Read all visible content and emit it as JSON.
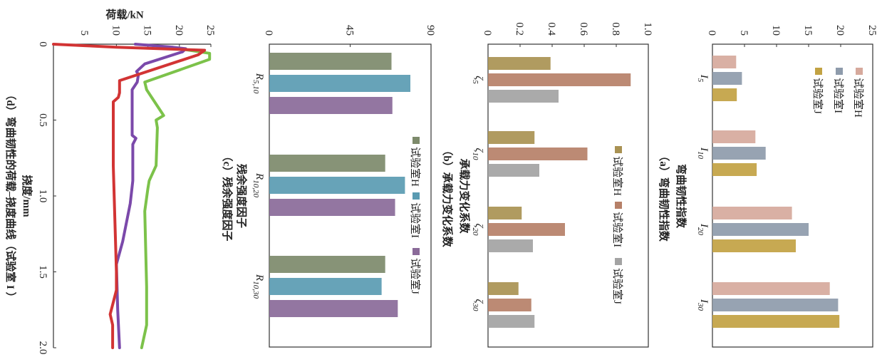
{
  "chart_data": [
    {
      "type": "bar",
      "title": "（a）弯曲韧性指数",
      "title_duplicate": "弯曲韧性指数",
      "categories": [
        "I5",
        "I10",
        "I20",
        "I30"
      ],
      "category_labels": [
        {
          "base": "I",
          "sub": "5"
        },
        {
          "base": "I",
          "sub": "10"
        },
        {
          "base": "I",
          "sub": "20"
        },
        {
          "base": "I",
          "sub": "30"
        }
      ],
      "series": [
        {
          "name": "试验室H",
          "color": "#d6a99c",
          "values": [
            3.7,
            6.7,
            12.4,
            18.3
          ]
        },
        {
          "name": "试验室I",
          "color": "#8e9bab",
          "values": [
            4.6,
            8.3,
            15.0,
            19.6
          ]
        },
        {
          "name": "试验室J",
          "color": "#c2a243",
          "values": [
            3.8,
            6.9,
            13.0,
            19.8
          ]
        }
      ],
      "ylim": [
        0,
        25
      ],
      "yticks": [
        "0",
        "5",
        "10",
        "15",
        "20",
        "25"
      ],
      "legend": "top-left, vertical"
    },
    {
      "type": "bar",
      "title": "（b）承载力变化系数",
      "title_duplicate": "承载力变化系数",
      "categories": [
        "ζ5",
        "ζ10",
        "ζ20",
        "ζ30"
      ],
      "category_labels": [
        {
          "base": "ζ",
          "sub": "5"
        },
        {
          "base": "ζ",
          "sub": "10"
        },
        {
          "base": "ζ",
          "sub": "20"
        },
        {
          "base": "ζ",
          "sub": "30"
        }
      ],
      "series": [
        {
          "name": "试验室H",
          "color": "#a99253",
          "values": [
            0.39,
            0.29,
            0.21,
            0.19
          ]
        },
        {
          "name": "试验室I",
          "color": "#b68068",
          "values": [
            0.89,
            0.62,
            0.48,
            0.27
          ]
        },
        {
          "name": "试验室J",
          "color": "#a3a3a3",
          "values": [
            0.44,
            0.32,
            0.28,
            0.29
          ]
        }
      ],
      "ylim": [
        0,
        1.0
      ],
      "yticks": [
        "0",
        "0.2",
        "0.4",
        "0.6",
        "0.8",
        "1.0"
      ],
      "legend": "top, horizontal"
    },
    {
      "type": "bar",
      "title": "（c）残余强度因子",
      "title_duplicate": "残余强度因子",
      "categories": [
        "R5,10",
        "R10,20",
        "R10,30"
      ],
      "category_labels": [
        {
          "base": "R",
          "sub": "5,10"
        },
        {
          "base": "R",
          "sub": "10,20"
        },
        {
          "base": "R",
          "sub": "10,30"
        }
      ],
      "series": [
        {
          "name": "试验室H",
          "color": "#7d8a6b",
          "values": [
            68,
            64.5,
            64.5
          ]
        },
        {
          "name": "试验室I",
          "color": "#5a9bb2",
          "values": [
            78.5,
            75.5,
            62.5
          ]
        },
        {
          "name": "试验室J",
          "color": "#8a6a99",
          "values": [
            68.5,
            70,
            71.5
          ]
        }
      ],
      "ylim": [
        0,
        90
      ],
      "yticks": [
        "0",
        "45",
        "90"
      ],
      "legend": "top, horizontal"
    },
    {
      "type": "line",
      "title": "（d）弯曲韧性的荷载–挠度曲线（试验室 I ）",
      "xlabel": "挠度/mm",
      "ylabel": "荷载/kN",
      "xlim": [
        0,
        2.0
      ],
      "ylim": [
        0,
        25
      ],
      "xticks": [
        "0",
        "0.5",
        "1.0",
        "1.5",
        "2.0"
      ],
      "yticks": [
        "5",
        "10",
        "15",
        "20",
        "25"
      ],
      "series": [
        {
          "name": "green",
          "color": "#7cc24a",
          "points": [
            [
              0.03,
              20
            ],
            [
              0.06,
              24.8
            ],
            [
              0.1,
              24.8
            ],
            [
              0.25,
              14.5
            ],
            [
              0.3,
              14.8
            ],
            [
              0.47,
              17.5
            ],
            [
              0.5,
              16.3
            ],
            [
              0.55,
              16.5
            ],
            [
              0.8,
              16.3
            ],
            [
              0.9,
              15.2
            ],
            [
              0.95,
              15
            ],
            [
              1.1,
              14.5
            ],
            [
              1.6,
              14.8
            ],
            [
              1.85,
              14.8
            ],
            [
              2.0,
              14
            ]
          ]
        },
        {
          "name": "purple",
          "color": "#7b49aa",
          "points": [
            [
              0,
              13
            ],
            [
              0.02,
              19
            ],
            [
              0.03,
              21
            ],
            [
              0.05,
              20.5
            ],
            [
              0.13,
              14.5
            ],
            [
              0.18,
              13.2
            ],
            [
              0.2,
              13.5
            ],
            [
              0.25,
              13.3
            ],
            [
              0.3,
              12.5
            ],
            [
              0.6,
              12.5
            ],
            [
              0.62,
              13.1
            ],
            [
              0.66,
              12.6
            ],
            [
              0.9,
              12.6
            ],
            [
              1.05,
              12.2
            ],
            [
              1.3,
              11
            ],
            [
              1.45,
              10
            ],
            [
              1.75,
              10.2
            ],
            [
              2.0,
              10.5
            ]
          ]
        },
        {
          "name": "red",
          "color": "#d23434",
          "points": [
            [
              0,
              0
            ],
            [
              0.01,
              5
            ],
            [
              0.02,
              10
            ],
            [
              0.04,
              24
            ],
            [
              0.07,
              23
            ],
            [
              0.24,
              10.5
            ],
            [
              0.32,
              10.5
            ],
            [
              0.35,
              10.3
            ],
            [
              0.38,
              9.5
            ],
            [
              0.8,
              9.5
            ],
            [
              1.5,
              10
            ],
            [
              1.62,
              10
            ],
            [
              1.78,
              9
            ],
            [
              1.85,
              9.4
            ],
            [
              2.0,
              9.4
            ]
          ]
        }
      ]
    }
  ]
}
